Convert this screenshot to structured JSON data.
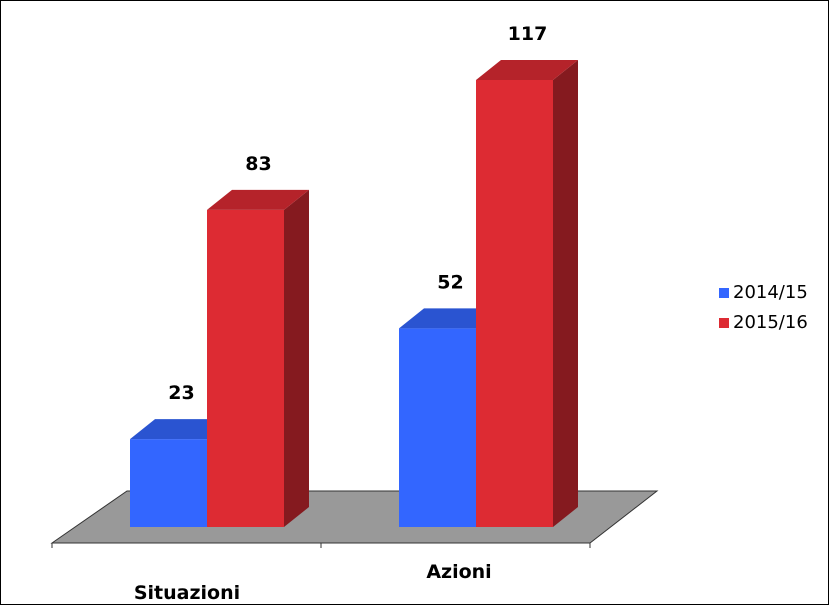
{
  "chart_data": {
    "type": "bar",
    "categories": [
      "Situazioni",
      "Azioni"
    ],
    "series": [
      {
        "name": "2014/15",
        "values": [
          23,
          52
        ],
        "color": "#3366ff"
      },
      {
        "name": "2015/16",
        "values": [
          83,
          117
        ],
        "color": "#dd2b33"
      }
    ],
    "ylim": [
      0,
      117
    ],
    "grid": false,
    "legend": "right",
    "style": "3d-clustered-column"
  }
}
